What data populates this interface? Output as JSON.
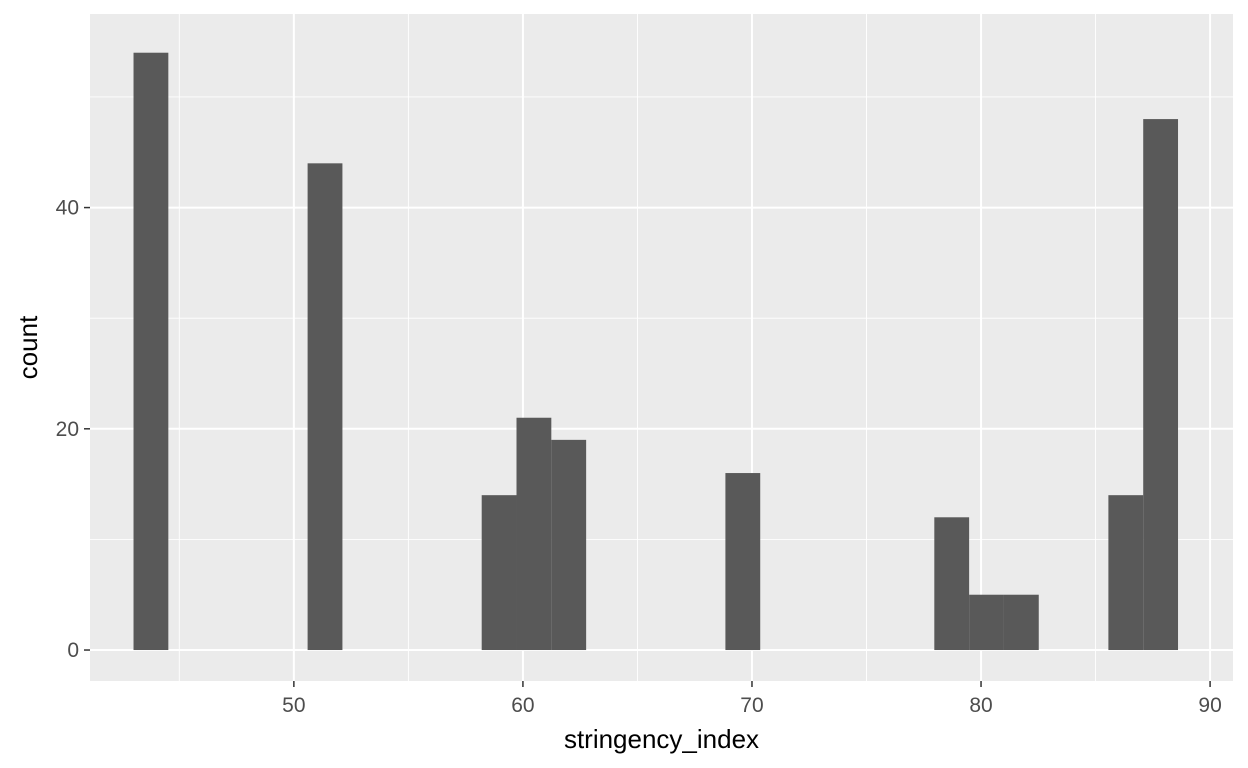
{
  "chart_data": {
    "type": "bar",
    "subtype": "histogram",
    "title": "",
    "xlabel": "stringency_index",
    "ylabel": "count",
    "xlim": [
      41.1,
      91.0
    ],
    "ylim": [
      -2.8,
      57.5
    ],
    "x_ticks": [
      50,
      60,
      70,
      80,
      90
    ],
    "y_ticks": [
      0,
      20,
      40
    ],
    "grid": true,
    "legend": "none",
    "bin_width": 1.52,
    "bins": [
      {
        "x0": 43.0,
        "x1": 44.52,
        "count": 54
      },
      {
        "x0": 50.6,
        "x1": 52.12,
        "count": 44
      },
      {
        "x0": 58.2,
        "x1": 59.72,
        "count": 14
      },
      {
        "x0": 59.72,
        "x1": 61.24,
        "count": 21
      },
      {
        "x0": 61.24,
        "x1": 62.76,
        "count": 19
      },
      {
        "x0": 68.84,
        "x1": 70.36,
        "count": 16
      },
      {
        "x0": 77.96,
        "x1": 79.48,
        "count": 12
      },
      {
        "x0": 79.48,
        "x1": 81.0,
        "count": 5
      },
      {
        "x0": 81.0,
        "x1": 82.52,
        "count": 5
      },
      {
        "x0": 85.56,
        "x1": 87.08,
        "count": 14
      },
      {
        "x0": 87.08,
        "x1": 88.6,
        "count": 48
      }
    ],
    "colors": {
      "panel": "#ebebeb",
      "grid_major": "#ffffff",
      "bar": "#595959",
      "tick_text": "#4d4d4d",
      "tick_mark": "#333333"
    }
  }
}
